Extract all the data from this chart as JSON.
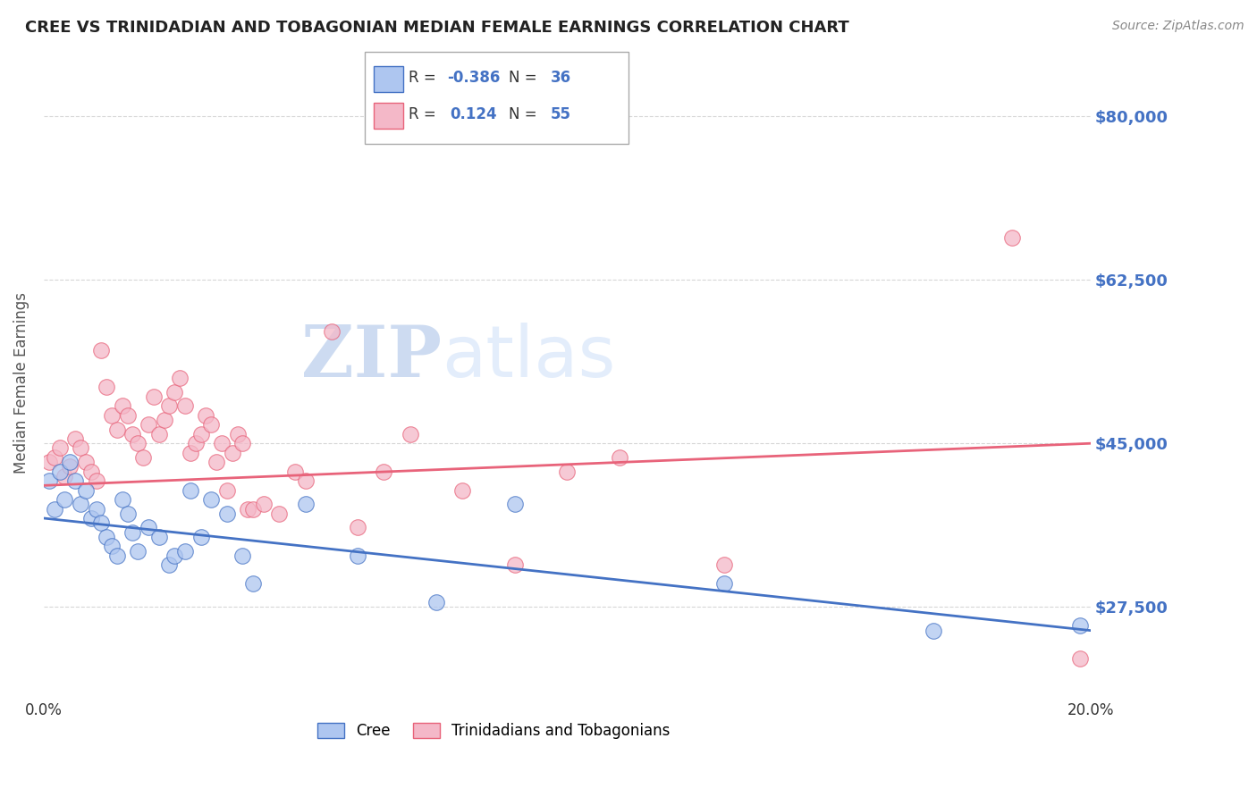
{
  "title": "CREE VS TRINIDADIAN AND TOBAGONIAN MEDIAN FEMALE EARNINGS CORRELATION CHART",
  "source": "Source: ZipAtlas.com",
  "ylabel": "Median Female Earnings",
  "y_ticks": [
    27500,
    45000,
    62500,
    80000
  ],
  "y_tick_labels": [
    "$27,500",
    "$45,000",
    "$62,500",
    "$80,000"
  ],
  "x_min": 0.0,
  "x_max": 0.2,
  "y_min": 18000,
  "y_max": 85000,
  "legend_r_cree": "-0.386",
  "legend_n_cree": "36",
  "legend_r_tnt": "0.124",
  "legend_n_tnt": "55",
  "color_cree_fill": "#aec6f0",
  "color_tnt_fill": "#f4b8c8",
  "color_cree_line": "#4472c4",
  "color_tnt_line": "#e8637a",
  "color_blue": "#4472c4",
  "color_pink": "#e8637a",
  "watermark_zip": "ZIP",
  "watermark_atlas": "atlas",
  "cree_trend_x0": 0.0,
  "cree_trend_y0": 37000,
  "cree_trend_x1": 0.2,
  "cree_trend_y1": 25000,
  "tnt_trend_x0": 0.0,
  "tnt_trend_y0": 40500,
  "tnt_trend_x1": 0.2,
  "tnt_trend_y1": 45000,
  "cree_scatter_x": [
    0.001,
    0.002,
    0.003,
    0.004,
    0.005,
    0.006,
    0.007,
    0.008,
    0.009,
    0.01,
    0.011,
    0.012,
    0.013,
    0.014,
    0.015,
    0.016,
    0.017,
    0.018,
    0.02,
    0.022,
    0.024,
    0.025,
    0.027,
    0.028,
    0.03,
    0.032,
    0.035,
    0.038,
    0.04,
    0.05,
    0.06,
    0.075,
    0.09,
    0.13,
    0.17,
    0.198
  ],
  "cree_scatter_y": [
    41000,
    38000,
    42000,
    39000,
    43000,
    41000,
    38500,
    40000,
    37000,
    38000,
    36500,
    35000,
    34000,
    33000,
    39000,
    37500,
    35500,
    33500,
    36000,
    35000,
    32000,
    33000,
    33500,
    40000,
    35000,
    39000,
    37500,
    33000,
    30000,
    38500,
    33000,
    28000,
    38500,
    30000,
    25000,
    25500
  ],
  "tnt_scatter_x": [
    0.001,
    0.002,
    0.003,
    0.004,
    0.005,
    0.006,
    0.007,
    0.008,
    0.009,
    0.01,
    0.011,
    0.012,
    0.013,
    0.014,
    0.015,
    0.016,
    0.017,
    0.018,
    0.019,
    0.02,
    0.021,
    0.022,
    0.023,
    0.024,
    0.025,
    0.026,
    0.027,
    0.028,
    0.029,
    0.03,
    0.031,
    0.032,
    0.033,
    0.034,
    0.035,
    0.036,
    0.037,
    0.038,
    0.039,
    0.04,
    0.042,
    0.045,
    0.048,
    0.05,
    0.055,
    0.06,
    0.065,
    0.07,
    0.08,
    0.09,
    0.1,
    0.11,
    0.13,
    0.185,
    0.198
  ],
  "tnt_scatter_y": [
    43000,
    43500,
    44500,
    41500,
    42500,
    45500,
    44500,
    43000,
    42000,
    41000,
    55000,
    51000,
    48000,
    46500,
    49000,
    48000,
    46000,
    45000,
    43500,
    47000,
    50000,
    46000,
    47500,
    49000,
    50500,
    52000,
    49000,
    44000,
    45000,
    46000,
    48000,
    47000,
    43000,
    45000,
    40000,
    44000,
    46000,
    45000,
    38000,
    38000,
    38500,
    37500,
    42000,
    41000,
    57000,
    36000,
    42000,
    46000,
    40000,
    32000,
    42000,
    43500,
    32000,
    67000,
    22000
  ]
}
